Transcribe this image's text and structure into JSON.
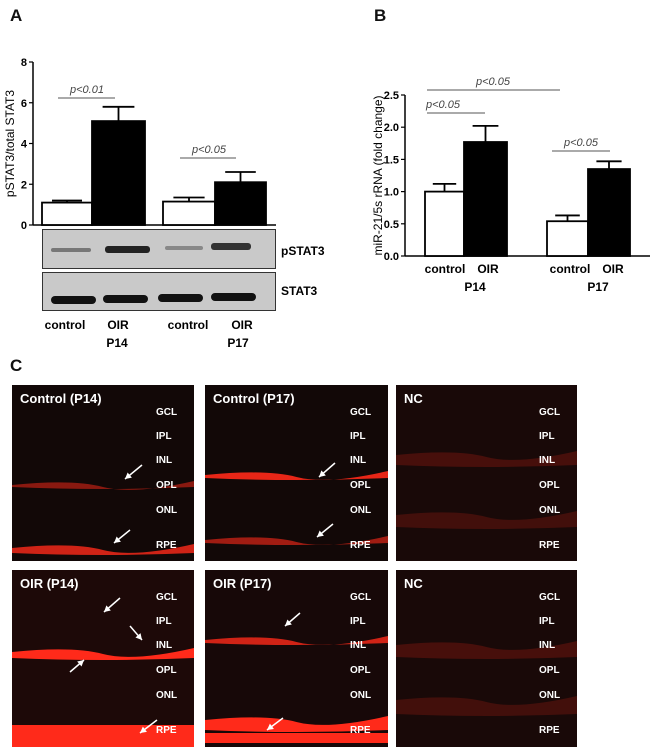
{
  "panel_labels": {
    "a": "A",
    "b": "B",
    "c": "C"
  },
  "chart_data": [
    {
      "type": "bar",
      "panel": "A",
      "ylabel": "pSTAT3/total STAT3",
      "ylim": [
        0,
        8
      ],
      "yticks": [
        "0",
        "2",
        "4",
        "6",
        "8"
      ],
      "categories": [
        "control",
        "OIR",
        "control",
        "OIR"
      ],
      "groups": [
        "P14",
        "P17"
      ],
      "values": [
        1.1,
        5.1,
        1.15,
        2.1
      ],
      "errors": [
        0.1,
        0.7,
        0.2,
        0.5
      ],
      "fills": [
        "#ffffff",
        "#000000",
        "#ffffff",
        "#000000"
      ],
      "annotations": [
        "p<0.01",
        "p<0.05"
      ],
      "blot_labels": [
        "pSTAT3",
        "STAT3"
      ]
    },
    {
      "type": "bar",
      "panel": "B",
      "ylabel": "miR-21/5s rRNA (fold change)",
      "ylim": [
        0,
        2.5
      ],
      "yticks": [
        "0.0",
        "0.5",
        "1.0",
        "1.5",
        "2.0",
        "2.5"
      ],
      "categories": [
        "control",
        "OIR",
        "control",
        "OIR"
      ],
      "groups": [
        "P14",
        "P17"
      ],
      "values": [
        1.0,
        1.77,
        0.54,
        1.35
      ],
      "errors": [
        0.12,
        0.25,
        0.09,
        0.12
      ],
      "fills": [
        "#ffffff",
        "#000000",
        "#ffffff",
        "#000000"
      ],
      "annotations": [
        "p<0.05",
        "p<0.05",
        "p<0.05"
      ]
    }
  ],
  "micrographs": {
    "layers": [
      "GCL",
      "IPL",
      "INL",
      "OPL",
      "ONL",
      "RPE"
    ],
    "titles": [
      "Control (P14)",
      "Control (P17)",
      "NC",
      "OIR (P14)",
      "OIR (P17)",
      "NC"
    ]
  },
  "colors": {
    "stain": "#ff2a1a",
    "background": "#0f0808"
  }
}
